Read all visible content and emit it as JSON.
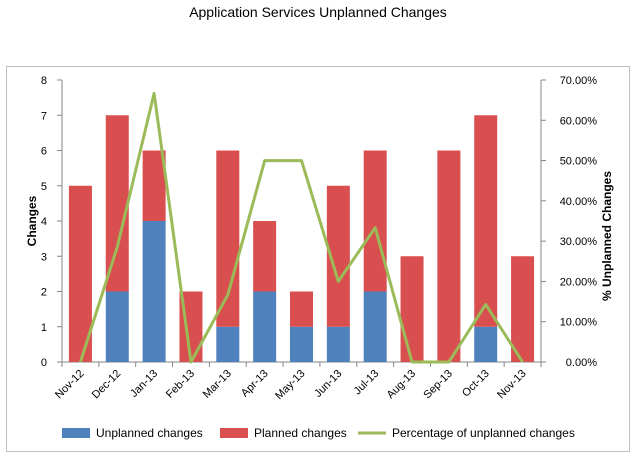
{
  "chart_data": {
    "type": "bar",
    "stacked": true,
    "title": "Application Services Unplanned Changes",
    "categories": [
      "Nov-12",
      "Dec-12",
      "Jan-13",
      "Feb-13",
      "Mar-13",
      "Apr-13",
      "May-13",
      "Jun-13",
      "Jul-13",
      "Aug-13",
      "Sep-13",
      "Oct-13",
      "Nov-13"
    ],
    "series": [
      {
        "name": "Unplanned changes",
        "type": "bar",
        "color": "#4f81bd",
        "values": [
          0,
          2,
          4,
          0,
          1,
          2,
          1,
          1,
          2,
          0,
          0,
          1,
          0
        ]
      },
      {
        "name": "Planned changes",
        "type": "bar",
        "color": "#d94f4f",
        "values": [
          5,
          5,
          2,
          2,
          5,
          2,
          1,
          4,
          4,
          3,
          6,
          6,
          3
        ]
      },
      {
        "name": "Percentage of unplanned changes",
        "type": "line",
        "axis": "right",
        "color": "#9bbb59",
        "values": [
          0,
          28.57,
          66.67,
          0,
          16.67,
          50,
          50,
          20,
          33.33,
          0,
          0,
          14.29,
          0
        ]
      }
    ],
    "ylabel": "Changes",
    "y2label": "% Unplanned Changes",
    "ylim": [
      0,
      8
    ],
    "y_ticks": [
      "0",
      "1",
      "2",
      "3",
      "4",
      "5",
      "6",
      "7",
      "8"
    ],
    "y2lim": [
      0,
      70
    ],
    "y2_ticks": [
      "0.00%",
      "10.00%",
      "20.00%",
      "30.00%",
      "40.00%",
      "50.00%",
      "60.00%",
      "70.00%"
    ],
    "grid": false,
    "legend_position": "bottom"
  }
}
